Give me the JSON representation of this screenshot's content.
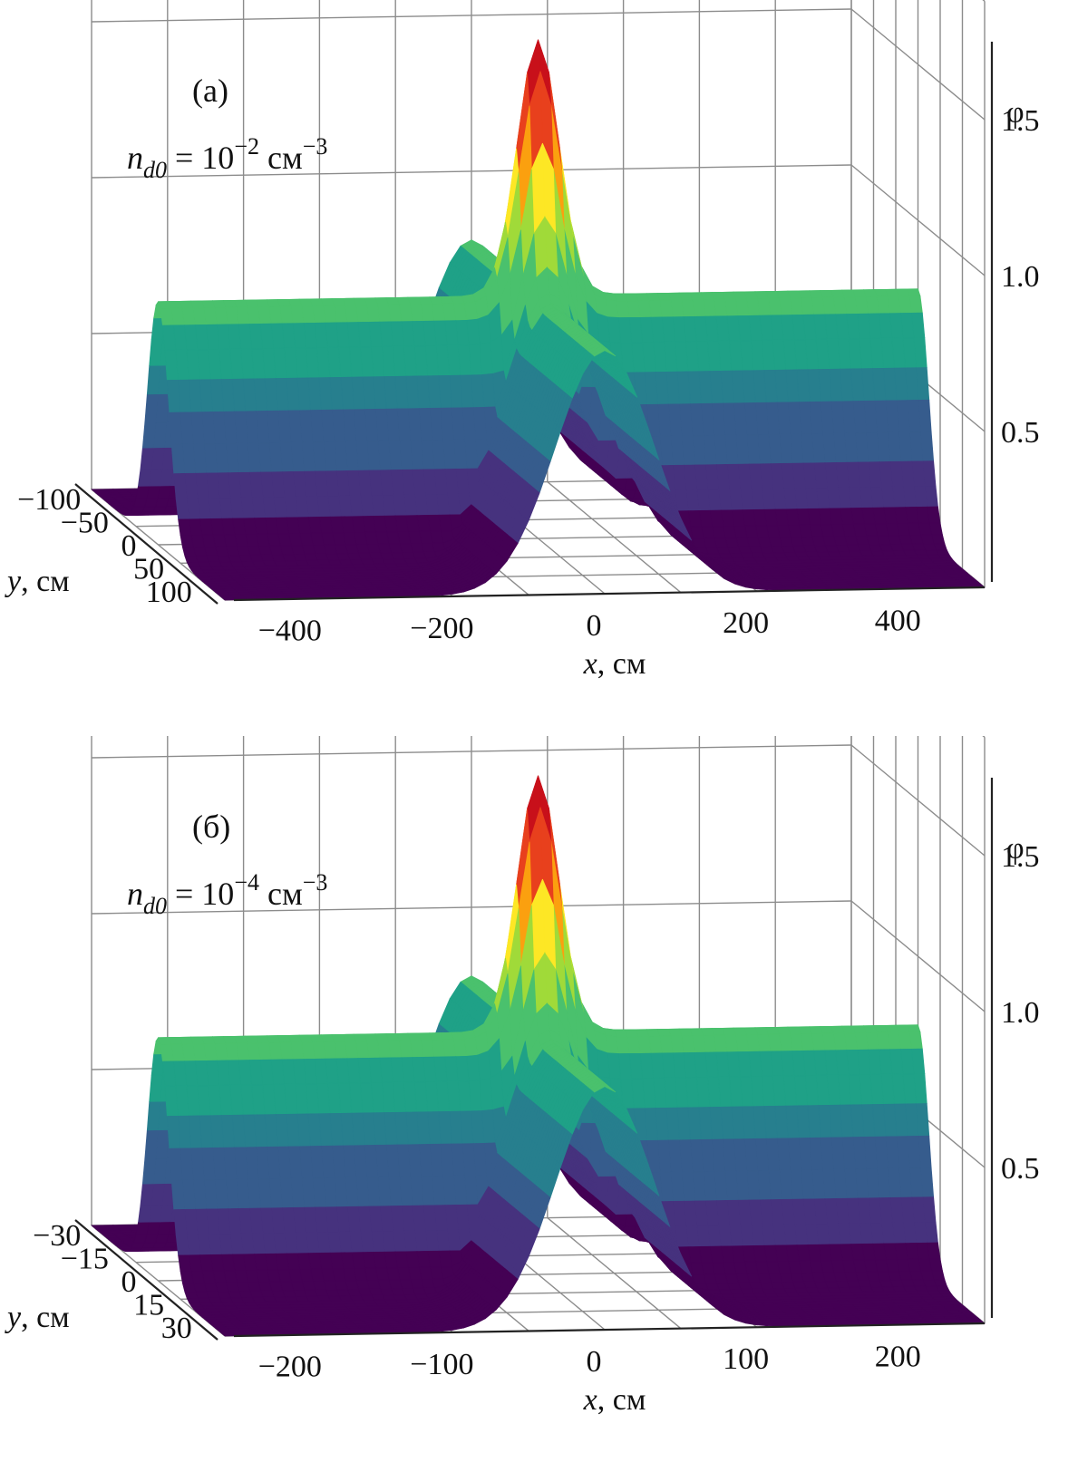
{
  "chart_data": [
    {
      "type": "surface3d",
      "panel_label": "(а)",
      "annotation": {
        "var": "n",
        "sub": "d0",
        "eq": " = 10",
        "exp": "−2",
        "unit": " см",
        "unit_exp": "−3"
      },
      "xlabel": "x, см",
      "ylabel": "y, см",
      "zlabel": "φ",
      "x_ticks": [
        "−400",
        "−200",
        "0",
        "200",
        "400"
      ],
      "x_tick_values": [
        -400,
        -200,
        0,
        200,
        400
      ],
      "y_ticks": [
        "−100",
        "−50",
        "0",
        "50",
        "100"
      ],
      "y_tick_values": [
        -100,
        -50,
        0,
        50,
        100
      ],
      "z_ticks": [
        "0.5",
        "1.0",
        "1.5"
      ],
      "z_tick_values": [
        0.5,
        1.0,
        1.5
      ],
      "xlim": [
        -500,
        500
      ],
      "ylim": [
        -120,
        120
      ],
      "zlim": [
        0,
        1.7
      ],
      "peak": 1.6,
      "ridge_height": 0.78,
      "colors": [
        "#440154",
        "#46327e",
        "#365c8d",
        "#277f8e",
        "#1fa187",
        "#4ac16d",
        "#a0da39",
        "#fde725",
        "#fba00f",
        "#e8401d",
        "#c8101a"
      ]
    },
    {
      "type": "surface3d",
      "panel_label": "(б)",
      "annotation": {
        "var": "n",
        "sub": "d0",
        "eq": " = 10",
        "exp": "−4",
        "unit": " см",
        "unit_exp": "−3"
      },
      "xlabel": "x, см",
      "ylabel": "y, см",
      "zlabel": "φ",
      "x_ticks": [
        "−200",
        "−100",
        "0",
        "100",
        "200"
      ],
      "x_tick_values": [
        -200,
        -100,
        0,
        100,
        200
      ],
      "y_ticks": [
        "−30",
        "−15",
        "0",
        "15",
        "30"
      ],
      "y_tick_values": [
        -30,
        -15,
        0,
        15,
        30
      ],
      "z_ticks": [
        "0.5",
        "1.0",
        "1.5"
      ],
      "z_tick_values": [
        0.5,
        1.0,
        1.5
      ],
      "xlim": [
        -250,
        250
      ],
      "ylim": [
        -36,
        36
      ],
      "zlim": [
        0,
        1.7
      ],
      "peak": 1.6,
      "ridge_height": 0.78,
      "colors": [
        "#440154",
        "#46327e",
        "#365c8d",
        "#277f8e",
        "#1fa187",
        "#4ac16d",
        "#a0da39",
        "#fde725",
        "#fba00f",
        "#e8401d",
        "#c8101a"
      ]
    }
  ]
}
